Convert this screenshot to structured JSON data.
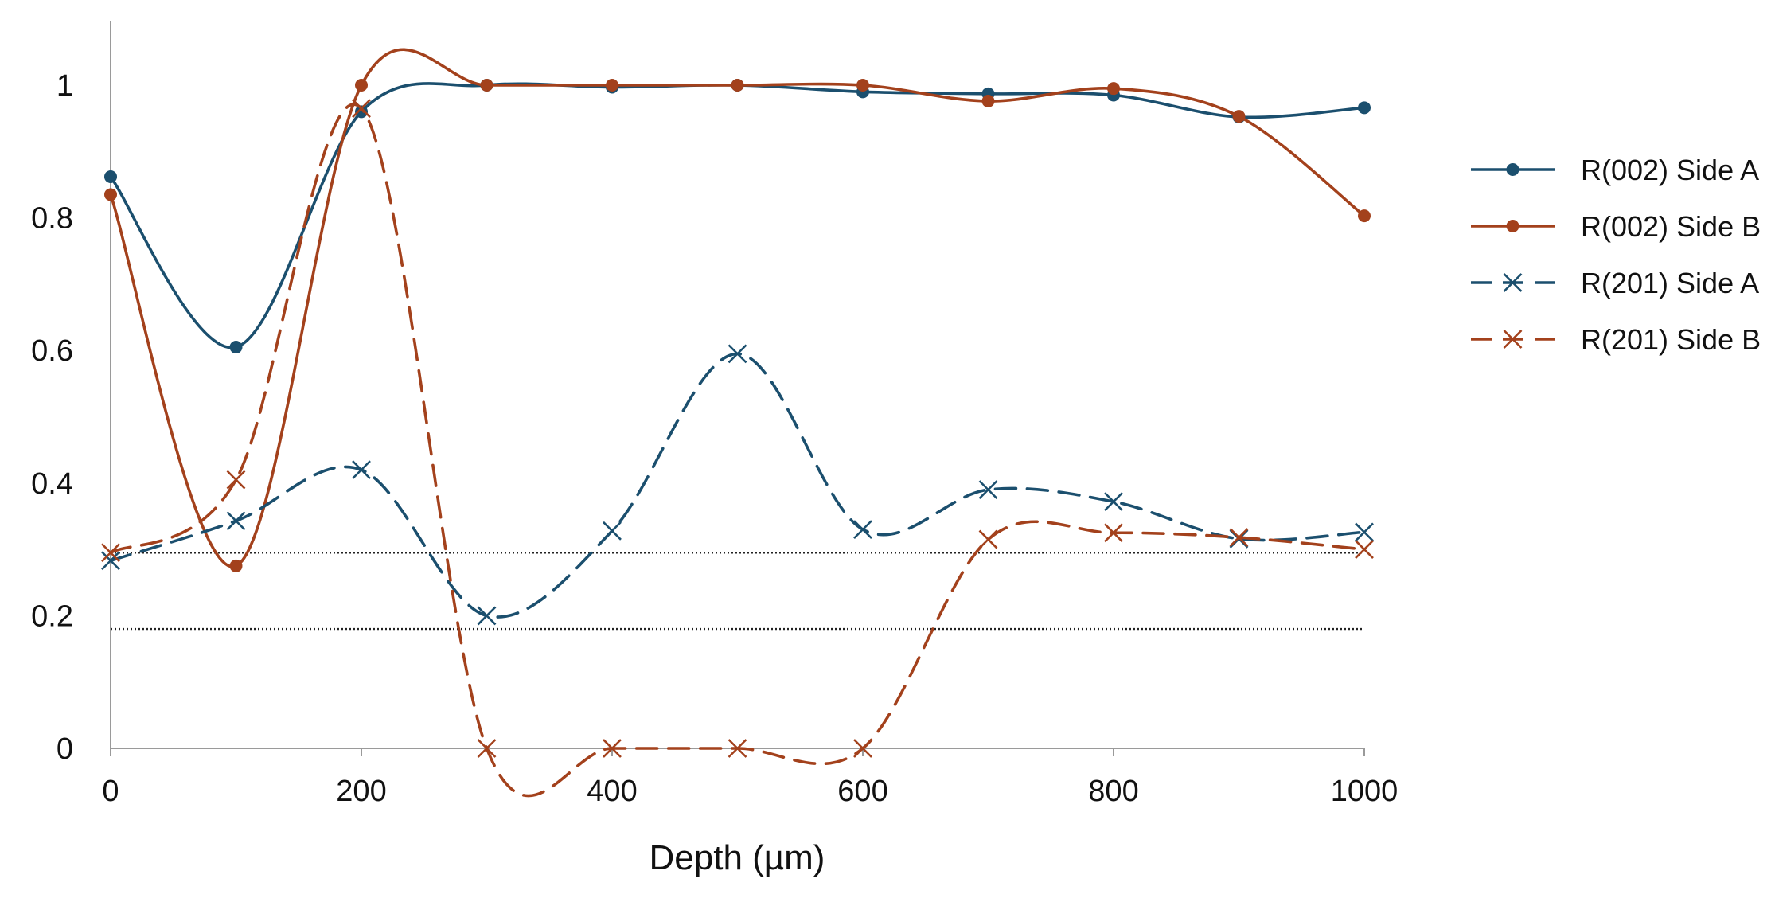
{
  "chart_data": {
    "type": "line",
    "title": "",
    "xlabel": "Depth (µm)",
    "ylabel": "",
    "xlim": [
      0,
      1000
    ],
    "ylim": [
      0,
      1.1
    ],
    "x_ticks": [
      0,
      200,
      400,
      600,
      800,
      1000
    ],
    "x_tick_labels": [
      "0",
      "200",
      "400",
      "600",
      "800",
      "1000"
    ],
    "y_ticks": [
      0,
      0.2,
      0.4,
      0.6,
      0.8,
      1
    ],
    "y_tick_labels": [
      "0",
      "0.2",
      "0.4",
      "0.6",
      "0.8",
      "1"
    ],
    "grid": false,
    "legend_position": "right",
    "x": [
      0,
      100,
      200,
      300,
      400,
      500,
      600,
      700,
      800,
      900,
      1000
    ],
    "series": [
      {
        "name": "R(002) Side A",
        "color": "#1b4f6e",
        "marker": "circle",
        "dashed": false,
        "values": [
          0.862,
          0.605,
          0.96,
          1.0,
          0.997,
          1.0,
          0.99,
          0.987,
          0.985,
          0.952,
          0.966
        ]
      },
      {
        "name": "R(002) Side B",
        "color": "#a3411c",
        "marker": "circle",
        "dashed": false,
        "values": [
          0.835,
          0.275,
          1.0,
          1.0,
          1.0,
          1.0,
          1.0,
          0.976,
          0.995,
          0.953,
          0.803
        ]
      },
      {
        "name": "R(201) Side A",
        "color": "#1b4f6e",
        "marker": "x",
        "dashed": true,
        "values": [
          0.283,
          0.343,
          0.42,
          0.2,
          0.328,
          0.595,
          0.33,
          0.39,
          0.372,
          0.316,
          0.326
        ]
      },
      {
        "name": "R(201) Side B",
        "color": "#a3411c",
        "marker": "x",
        "dashed": true,
        "values": [
          0.295,
          0.405,
          0.965,
          0.0,
          0.0,
          0.0,
          0.0,
          0.315,
          0.325,
          0.318,
          0.3
        ]
      }
    ],
    "reference_lines": [
      {
        "y": 0.295,
        "style": "dotted",
        "color": "#222222"
      },
      {
        "y": 0.18,
        "style": "dotted",
        "color": "#222222"
      }
    ]
  }
}
